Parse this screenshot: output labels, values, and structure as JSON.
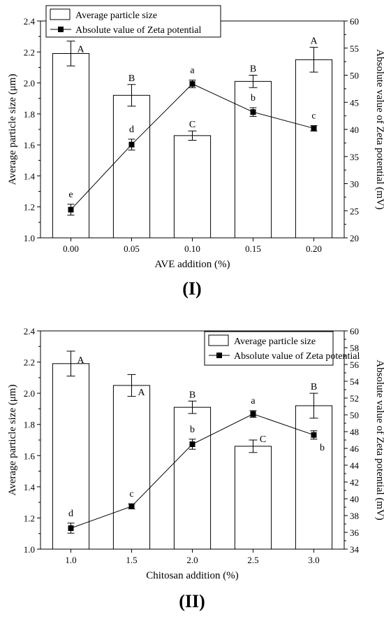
{
  "chart_data": [
    {
      "type": "bar",
      "panel_label": "(I)",
      "categories": [
        "0.00",
        "0.05",
        "0.10",
        "0.15",
        "0.20"
      ],
      "xlabel": "AVE addition (%)",
      "ylabel": "Average particle size (μm)",
      "y2label": "Absolute value of Zeta potential (mV)",
      "ylim": [
        1.0,
        2.4
      ],
      "yticks": [
        "1.0",
        "1.2",
        "1.4",
        "1.6",
        "1.8",
        "2.0",
        "2.2",
        "2.4"
      ],
      "y2lim": [
        20,
        60
      ],
      "y2ticks": [
        "20",
        "25",
        "30",
        "35",
        "40",
        "45",
        "50",
        "55",
        "60"
      ],
      "legend_position": "top-left",
      "series": [
        {
          "name": "Average particle size",
          "type": "bar",
          "axis": "left",
          "values": [
            2.19,
            1.92,
            1.66,
            2.01,
            2.15
          ],
          "errors": [
            0.08,
            0.07,
            0.03,
            0.04,
            0.08
          ],
          "labels": [
            "A",
            "B",
            "C",
            "B",
            "A"
          ]
        },
        {
          "name": "Absolute value of Zeta potential",
          "type": "line",
          "axis": "right",
          "values": [
            25.2,
            37.2,
            48.4,
            43.2,
            40.2
          ],
          "errors": [
            1.0,
            1.0,
            0.7,
            0.8,
            0.5
          ],
          "labels": [
            "e",
            "d",
            "a",
            "b",
            "c"
          ]
        }
      ]
    },
    {
      "type": "bar",
      "panel_label": "(II)",
      "categories": [
        "1.0",
        "1.5",
        "2.0",
        "2.5",
        "3.0"
      ],
      "xlabel": "Chitosan addition (%)",
      "ylabel": "Average particle size (μm)",
      "y2label": "Absolute value of Zeta potential (mV)",
      "ylim": [
        1.0,
        2.4
      ],
      "yticks": [
        "1.0",
        "1.2",
        "1.4",
        "1.6",
        "1.8",
        "2.0",
        "2.2",
        "2.4"
      ],
      "y2lim": [
        34,
        60
      ],
      "y2ticks": [
        "34",
        "36",
        "38",
        "40",
        "42",
        "44",
        "46",
        "48",
        "50",
        "52",
        "54",
        "56",
        "58",
        "60"
      ],
      "legend_position": "top-right",
      "series": [
        {
          "name": "Average particle size",
          "type": "bar",
          "axis": "left",
          "values": [
            2.19,
            2.05,
            1.91,
            1.66,
            1.92
          ],
          "errors": [
            0.08,
            0.07,
            0.04,
            0.04,
            0.08
          ],
          "labels": [
            "A",
            "A",
            "B",
            "C",
            "B"
          ]
        },
        {
          "name": "Absolute value of Zeta potential",
          "type": "line",
          "axis": "right",
          "values": [
            36.5,
            39.1,
            46.5,
            50.1,
            47.6
          ],
          "errors": [
            0.6,
            0.3,
            0.6,
            0.4,
            0.5
          ],
          "labels": [
            "d",
            "c",
            "b",
            "a",
            "b"
          ]
        }
      ]
    }
  ]
}
